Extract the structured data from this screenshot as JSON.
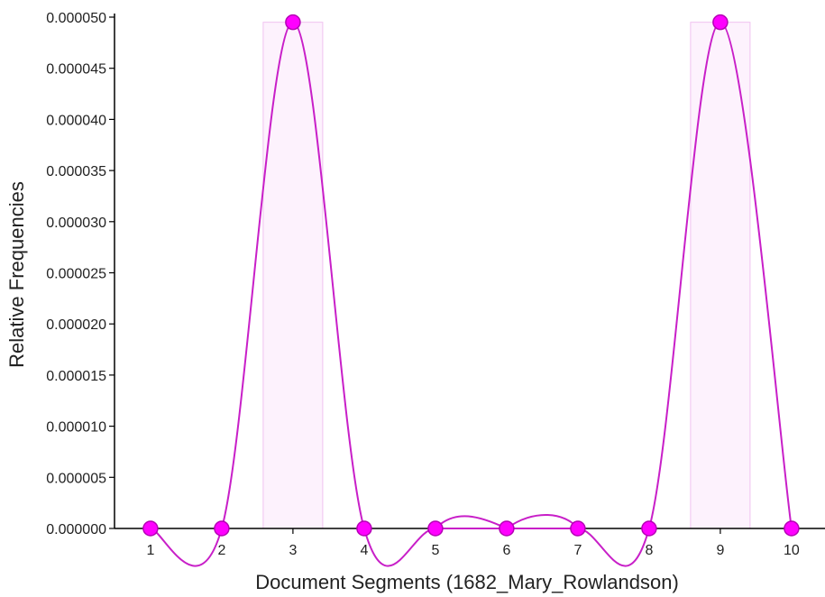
{
  "chart_data": {
    "type": "line",
    "xlabel": "Document Segments (1682_Mary_Rowlandson)",
    "ylabel": "Relative Frequencies",
    "categories": [
      "1",
      "2",
      "3",
      "4",
      "5",
      "6",
      "7",
      "8",
      "9",
      "10"
    ],
    "x": [
      1,
      2,
      3,
      4,
      5,
      6,
      7,
      8,
      9,
      10
    ],
    "values": [
      0,
      0,
      4.95e-05,
      0,
      0,
      0,
      0,
      0,
      4.95e-05,
      0
    ],
    "ylim": [
      0,
      5e-05
    ],
    "xlim": [
      0.5,
      10.5
    ],
    "yticks": [
      "0.000000",
      "0.000005",
      "0.000010",
      "0.000015",
      "0.000020",
      "0.000025",
      "0.000030",
      "0.000035",
      "0.000040",
      "0.000045",
      "0.000050"
    ],
    "ytick_values": [
      0,
      5e-06,
      1e-05,
      1.5e-05,
      2e-05,
      2.5e-05,
      3e-05,
      3.5e-05,
      4e-05,
      4.5e-05,
      5e-05
    ],
    "highlight_bars": [
      3,
      9
    ],
    "curve": "smooth",
    "grid": false,
    "colors": {
      "line": "#c81fc8",
      "marker_fill": "#ff00ff",
      "marker_stroke": "#b400b4",
      "highlight_fill": "#fdf2fd",
      "highlight_stroke": "#f0c2f0"
    }
  }
}
